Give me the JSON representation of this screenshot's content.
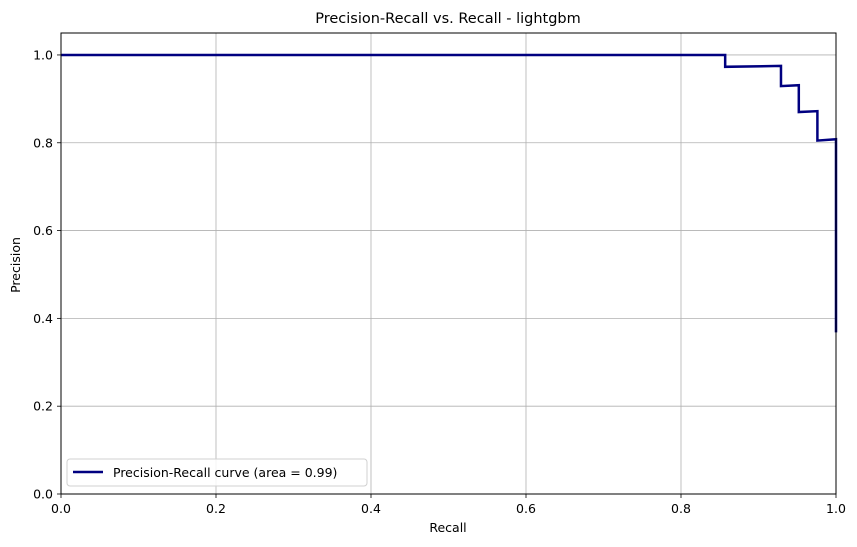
{
  "chart_data": {
    "type": "line",
    "title": "Precision-Recall vs. Recall - lightgbm",
    "xlabel": "Recall",
    "ylabel": "Precision",
    "xlim": [
      0.0,
      1.0
    ],
    "ylim": [
      0.0,
      1.05
    ],
    "xticks": [
      "0.0",
      "0.2",
      "0.4",
      "0.6",
      "0.8",
      "1.0"
    ],
    "yticks": [
      "0.0",
      "0.2",
      "0.4",
      "0.6",
      "0.8",
      "1.0"
    ],
    "grid": true,
    "legend_position": "lower-left",
    "series": [
      {
        "name": "Precision-Recall curve (area = 0.99)",
        "color": "#000080",
        "drawstyle": "steps-post",
        "x": [
          0.0,
          0.857,
          0.857,
          0.929,
          0.929,
          0.952,
          0.952,
          0.976,
          0.976,
          1.0,
          1.0
        ],
        "y": [
          1.0,
          1.0,
          0.973,
          0.975,
          0.929,
          0.931,
          0.87,
          0.872,
          0.805,
          0.808,
          0.368
        ]
      }
    ]
  }
}
